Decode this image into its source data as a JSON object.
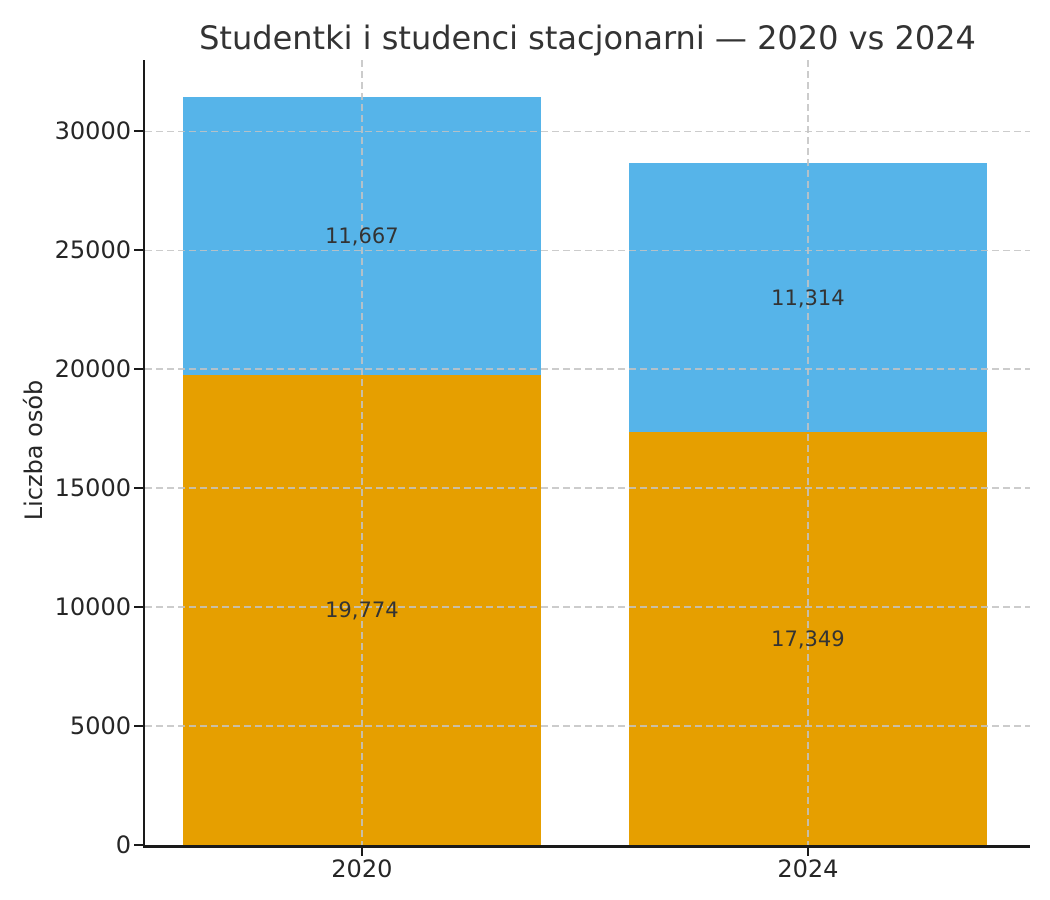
{
  "chart_data": {
    "type": "bar",
    "stacked": true,
    "title": "Studentki i studenci stacjonarni — 2020 vs 2024",
    "xlabel": "",
    "ylabel": "Liczba osób",
    "categories": [
      "2020",
      "2024"
    ],
    "series": [
      {
        "name": "orange-bottom-segment",
        "color": "#E69F00",
        "values": [
          19774,
          17349
        ],
        "value_labels": [
          "19,774",
          "17,349"
        ]
      },
      {
        "name": "blue-top-segment",
        "color": "#56B4E9",
        "values": [
          11667,
          11314
        ],
        "value_labels": [
          "11,667",
          "11,314"
        ]
      }
    ],
    "stack_totals": [
      31441,
      28663
    ],
    "y_ticks": [
      0,
      5000,
      10000,
      15000,
      20000,
      25000,
      30000
    ],
    "ylim": [
      0,
      33000
    ],
    "grid": {
      "visible": true,
      "style": "dashed",
      "axes": "both",
      "color": "#c8c8c8",
      "drawn_over_bars": true
    },
    "legend_position": "none"
  },
  "colors": {
    "background": "#ffffff",
    "spine": "#1a1a1a",
    "tick_label": "#262626",
    "title_text": "#333333",
    "bar_value_label": "#333333",
    "grid": "#c8c8c8"
  }
}
